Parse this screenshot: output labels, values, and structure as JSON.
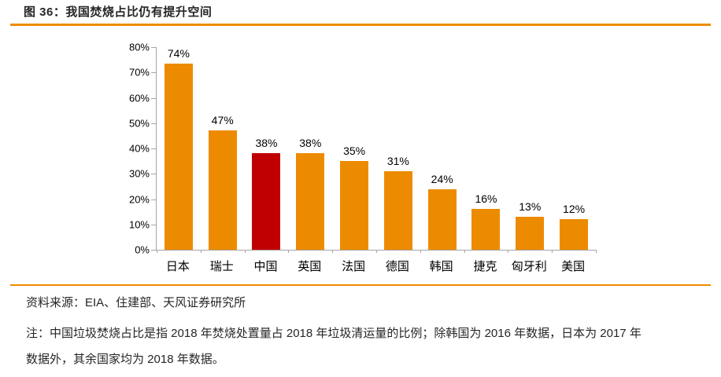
{
  "header": {
    "title": "图 36：我国焚烧占比仍有提升空间"
  },
  "chart_data": {
    "type": "bar",
    "categories": [
      "日本",
      "瑞士",
      "中国",
      "英国",
      "法国",
      "德国",
      "韩国",
      "捷克",
      "匈牙利",
      "美国"
    ],
    "values": [
      74,
      47,
      38,
      38,
      35,
      31,
      24,
      16,
      13,
      12
    ],
    "value_labels": [
      "74%",
      "47%",
      "38%",
      "38%",
      "35%",
      "31%",
      "24%",
      "16%",
      "13%",
      "12%"
    ],
    "highlight_category": "中国",
    "title": "",
    "xlabel": "",
    "ylabel": "",
    "ylim": [
      0,
      80
    ],
    "ytick_step": 10,
    "ytick_labels": [
      "80%",
      "70%",
      "60%",
      "50%",
      "40%",
      "30%",
      "20%",
      "10%",
      "0%"
    ],
    "grid": false,
    "legend": false,
    "bar_color": "#ED8B00",
    "highlight_color": "#C00000",
    "axis_color": "#A6A6A6"
  },
  "footer": {
    "source": "资料来源：EIA、住建部、天风证券研究所",
    "note_lines": [
      "注：中国垃圾焚烧占比是指 2018 年焚烧处置量占 2018 年垃圾清运量的比例；除韩国为 2016 年数据，日本为 2017 年",
      "数据外，其余国家均为 2018 年数据。"
    ]
  },
  "colors": {
    "accent": "#ED8B00",
    "highlight": "#C00000",
    "axis": "#A6A6A6",
    "text": "#262626"
  }
}
